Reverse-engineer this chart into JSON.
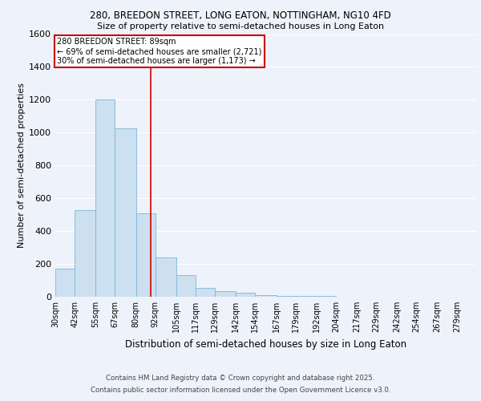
{
  "title_line1": "280, BREEDON STREET, LONG EATON, NOTTINGHAM, NG10 4FD",
  "title_line2": "Size of property relative to semi-detached houses in Long Eaton",
  "xlabel": "Distribution of semi-detached houses by size in Long Eaton",
  "ylabel": "Number of semi-detached properties",
  "bin_labels": [
    "30sqm",
    "42sqm",
    "55sqm",
    "67sqm",
    "80sqm",
    "92sqm",
    "105sqm",
    "117sqm",
    "129sqm",
    "142sqm",
    "154sqm",
    "167sqm",
    "179sqm",
    "192sqm",
    "204sqm",
    "217sqm",
    "229sqm",
    "242sqm",
    "254sqm",
    "267sqm",
    "279sqm"
  ],
  "bin_edges": [
    30,
    42,
    55,
    67,
    80,
    92,
    105,
    117,
    129,
    142,
    154,
    167,
    179,
    192,
    204,
    217,
    229,
    242,
    254,
    267,
    279,
    291
  ],
  "bar_heights": [
    170,
    530,
    1200,
    1025,
    510,
    240,
    130,
    55,
    35,
    25,
    10,
    5,
    5,
    3,
    2,
    1,
    1,
    0,
    0,
    0,
    0
  ],
  "bar_color": "#cce0f0",
  "bar_edge_color": "#7ab8d8",
  "property_size": 89,
  "property_label": "280 BREEDON STREET: 89sqm",
  "pct_smaller": 69,
  "n_smaller": 2721,
  "pct_larger": 30,
  "n_larger": 1173,
  "vline_color": "#cc0000",
  "annotation_box_color": "#cc0000",
  "ylim": [
    0,
    1600
  ],
  "yticks": [
    0,
    200,
    400,
    600,
    800,
    1000,
    1200,
    1400,
    1600
  ],
  "background_color": "#eef2fa",
  "grid_color": "#ffffff",
  "footer_line1": "Contains HM Land Registry data © Crown copyright and database right 2025.",
  "footer_line2": "Contains public sector information licensed under the Open Government Licence v3.0."
}
